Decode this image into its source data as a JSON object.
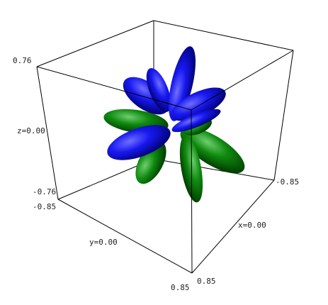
{
  "chart_data": {
    "type": "3d-surface",
    "description_hidden": true,
    "axes": {
      "x": {
        "min": -0.85,
        "max": 0.85,
        "min_label": "-0.85",
        "mid_label": "x=0.00",
        "max_label": "0.85"
      },
      "y": {
        "min": -0.85,
        "max": 0.85,
        "min_label": "-0.85",
        "mid_label": "y=0.00",
        "max_label": "0.85"
      },
      "z": {
        "min": -0.76,
        "max": 0.76,
        "min_label": "-0.76",
        "mid_label": "z=0.00",
        "max_label": "0.76"
      }
    },
    "colors": {
      "positive_lobes": "#0000ee",
      "negative_lobes": "#007a00",
      "box": "#000000"
    },
    "bounding_box": true,
    "grid": false
  }
}
